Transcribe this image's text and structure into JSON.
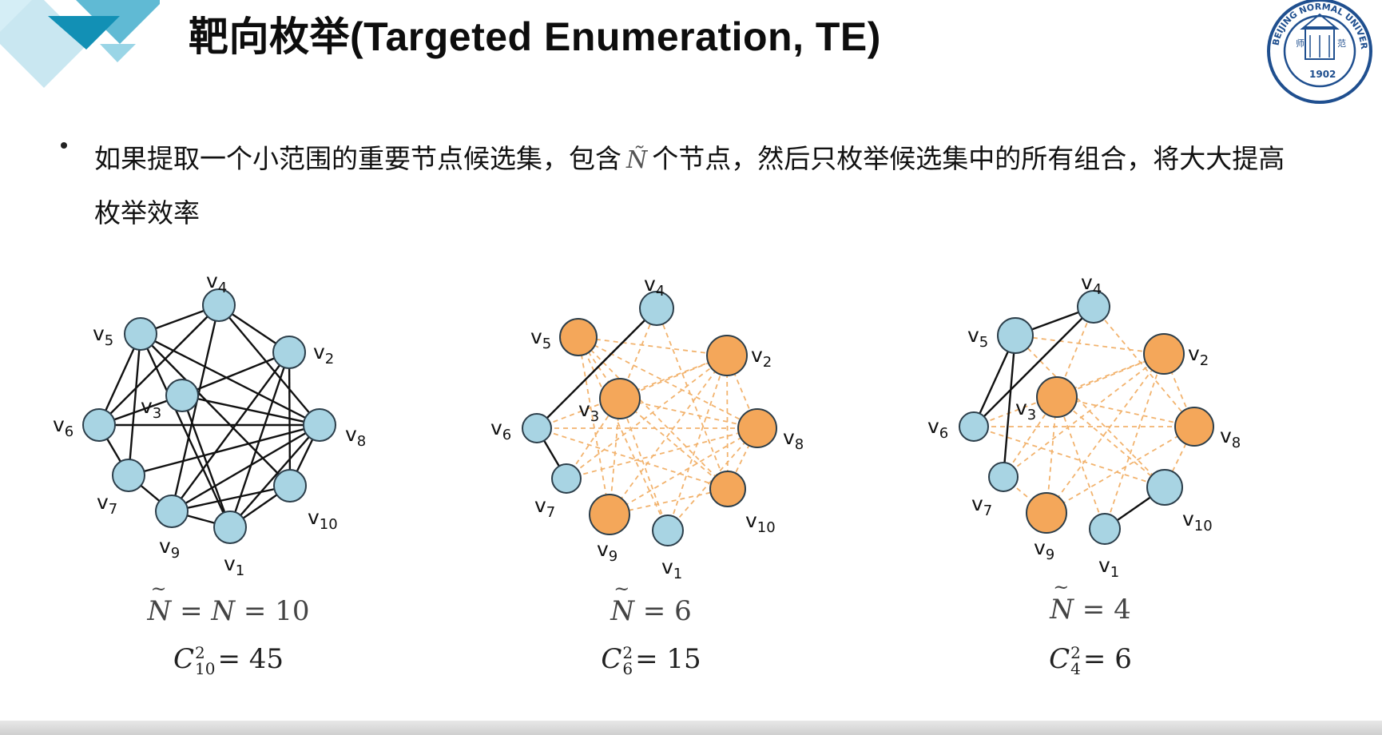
{
  "header": {
    "title": "靶向枚举(Targeted Enumeration, TE)"
  },
  "logo": {
    "ring_text": "BEIJING NORMAL UNIVERSITY",
    "year": "1902",
    "inner_left": "师",
    "inner_right": "范"
  },
  "bullet": {
    "text_before": "如果提取一个小范围的重要节点候选集，包含",
    "symbol": "Ñ",
    "text_after": "个节点，然后只枚举候选集中的所有组合，将大大提高枚举效率"
  },
  "colors": {
    "blue_node": "#a8d4e3",
    "orange_node": "#f4a75a",
    "dashed_edge": "#f2b36e",
    "solid_edge": "#111111"
  },
  "graphs": [
    {
      "caption1": {
        "lhs": "N",
        "mid": "= N =",
        "value": "10"
      },
      "caption2": {
        "base": "C",
        "sup": "2",
        "sub": "10",
        "rhs": "= 45"
      },
      "nodes": [
        {
          "id": "4",
          "label": "v",
          "sub": "4",
          "color": "blue"
        },
        {
          "id": "5",
          "label": "v",
          "sub": "5",
          "color": "blue"
        },
        {
          "id": "2",
          "label": "v",
          "sub": "2",
          "color": "blue"
        },
        {
          "id": "3",
          "label": "v",
          "sub": "3",
          "color": "blue"
        },
        {
          "id": "6",
          "label": "v",
          "sub": "6",
          "color": "blue"
        },
        {
          "id": "8",
          "label": "v",
          "sub": "8",
          "color": "blue"
        },
        {
          "id": "7",
          "label": "v",
          "sub": "7",
          "color": "blue"
        },
        {
          "id": "10",
          "label": "v",
          "sub": "10",
          "color": "blue"
        },
        {
          "id": "9",
          "label": "v",
          "sub": "9",
          "color": "blue"
        },
        {
          "id": "1",
          "label": "v",
          "sub": "1",
          "color": "blue"
        }
      ],
      "solid_edges": [
        [
          "4",
          "2"
        ],
        [
          "4",
          "5"
        ],
        [
          "4",
          "6"
        ],
        [
          "4",
          "9"
        ],
        [
          "5",
          "6"
        ],
        [
          "5",
          "1"
        ],
        [
          "5",
          "8"
        ],
        [
          "5",
          "10"
        ],
        [
          "5",
          "7"
        ],
        [
          "2",
          "3"
        ],
        [
          "2",
          "10"
        ],
        [
          "2",
          "9"
        ],
        [
          "2",
          "1"
        ],
        [
          "3",
          "6"
        ],
        [
          "3",
          "8"
        ],
        [
          "3",
          "1"
        ],
        [
          "6",
          "8"
        ],
        [
          "6",
          "7"
        ],
        [
          "7",
          "9"
        ],
        [
          "7",
          "8"
        ],
        [
          "9",
          "10"
        ],
        [
          "9",
          "8"
        ],
        [
          "9",
          "1"
        ],
        [
          "1",
          "10"
        ],
        [
          "1",
          "8"
        ],
        [
          "8",
          "10"
        ],
        [
          "4",
          "8"
        ]
      ],
      "dashed_edges": []
    },
    {
      "caption1": {
        "lhs": "N",
        "mid": "=",
        "value": "6"
      },
      "caption2": {
        "base": "C",
        "sup": "2",
        "sub": "6",
        "rhs": "= 15"
      },
      "nodes": [
        {
          "id": "4",
          "label": "v",
          "sub": "4",
          "color": "blue"
        },
        {
          "id": "5",
          "label": "v",
          "sub": "5",
          "color": "orange"
        },
        {
          "id": "2",
          "label": "v",
          "sub": "2",
          "color": "orange"
        },
        {
          "id": "3",
          "label": "v",
          "sub": "3",
          "color": "orange"
        },
        {
          "id": "6",
          "label": "v",
          "sub": "6",
          "color": "blue"
        },
        {
          "id": "8",
          "label": "v",
          "sub": "8",
          "color": "orange"
        },
        {
          "id": "7",
          "label": "v",
          "sub": "7",
          "color": "blue"
        },
        {
          "id": "10",
          "label": "v",
          "sub": "10",
          "color": "orange"
        },
        {
          "id": "9",
          "label": "v",
          "sub": "9",
          "color": "orange"
        },
        {
          "id": "1",
          "label": "v",
          "sub": "1",
          "color": "blue"
        }
      ],
      "solid_edges": [
        [
          "4",
          "6"
        ],
        [
          "6",
          "7"
        ]
      ],
      "dashed_edges": "all-pairs-of-orange"
    },
    {
      "caption1": {
        "lhs": "N",
        "mid": "=",
        "value": "4"
      },
      "caption2": {
        "base": "C",
        "sup": "2",
        "sub": "4",
        "rhs": "= 6"
      },
      "nodes": [
        {
          "id": "4",
          "label": "v",
          "sub": "4",
          "color": "blue"
        },
        {
          "id": "5",
          "label": "v",
          "sub": "5",
          "color": "blue"
        },
        {
          "id": "2",
          "label": "v",
          "sub": "2",
          "color": "orange"
        },
        {
          "id": "3",
          "label": "v",
          "sub": "3",
          "color": "orange"
        },
        {
          "id": "6",
          "label": "v",
          "sub": "6",
          "color": "blue"
        },
        {
          "id": "8",
          "label": "v",
          "sub": "8",
          "color": "orange"
        },
        {
          "id": "7",
          "label": "v",
          "sub": "7",
          "color": "blue"
        },
        {
          "id": "10",
          "label": "v",
          "sub": "10",
          "color": "blue"
        },
        {
          "id": "9",
          "label": "v",
          "sub": "9",
          "color": "orange"
        },
        {
          "id": "1",
          "label": "v",
          "sub": "1",
          "color": "blue"
        }
      ],
      "solid_edges": [
        [
          "4",
          "5"
        ],
        [
          "4",
          "6"
        ],
        [
          "5",
          "6"
        ],
        [
          "5",
          "7"
        ],
        [
          "1",
          "10"
        ]
      ],
      "dashed_edges": "all-pairs-of-orange-plus"
    }
  ]
}
